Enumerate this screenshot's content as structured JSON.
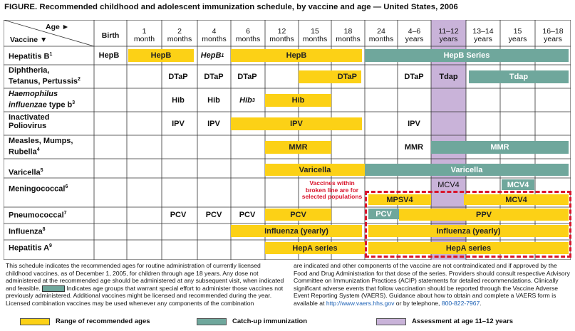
{
  "title": "FIGURE. Recommended childhood and adolescent immunization schedule, by vaccine and age — United States, 2006",
  "header": {
    "vaccine_label": "Vaccine ▼",
    "age_label": "Age ►",
    "ages": [
      {
        "line1": "Birth",
        "line2": ""
      },
      {
        "line1": "1",
        "line2": "month"
      },
      {
        "line1": "2",
        "line2": "months"
      },
      {
        "line1": "4",
        "line2": "months"
      },
      {
        "line1": "6",
        "line2": "months"
      },
      {
        "line1": "12",
        "line2": "months"
      },
      {
        "line1": "15",
        "line2": "months"
      },
      {
        "line1": "18",
        "line2": "months"
      },
      {
        "line1": "24",
        "line2": "months"
      },
      {
        "line1": "4–6",
        "line2": "years"
      },
      {
        "line1": "11–12",
        "line2": "years"
      },
      {
        "line1": "13–14",
        "line2": "years"
      },
      {
        "line1": "15",
        "line2": "years"
      },
      {
        "line1": "16–18",
        "line2": "years"
      }
    ]
  },
  "vaccines": [
    {
      "name": "Hepatitis B",
      "sup": "1",
      "name2": ""
    },
    {
      "name": "Diphtheria,",
      "sup": "",
      "name2": "Tetanus, Pertussis",
      "sup2": "2"
    },
    {
      "name": "Haemophilus",
      "sup": "",
      "name2": "influenzae type b",
      "sup2": "3"
    },
    {
      "name": "Inactivated",
      "sup": "",
      "name2": "Poliovirus",
      "sup2": ""
    },
    {
      "name": "Measles, Mumps,",
      "sup": "",
      "name2": "Rubella",
      "sup2": "4"
    },
    {
      "name": "Varicella",
      "sup": "5",
      "name2": ""
    },
    {
      "name": "Meningococcal",
      "sup": "6",
      "name2": ""
    },
    {
      "name": "Pneumococcal",
      "sup": "7",
      "name2": ""
    },
    {
      "name": "Influenza",
      "sup": "8",
      "name2": ""
    },
    {
      "name": "Hepatitis A",
      "sup": "9",
      "name2": ""
    }
  ],
  "doses": {
    "hepb_birth": "HepB",
    "hepb_1m": "HepB",
    "hepb_4m": "HepB",
    "hepb_4m_sup": "1",
    "hepb_main": "HepB",
    "hepb_series": "HepB Series",
    "dtap_2m": "DTaP",
    "dtap_4m": "DTaP",
    "dtap_6m": "DTaP",
    "dtap_15m": "DTaP",
    "dtap_4y": "DTaP",
    "tdap_11": "Tdap",
    "tdap_catchup": "Tdap",
    "hib_2m": "Hib",
    "hib_4m": "Hib",
    "hib_6m": "Hib",
    "hib_6m_sup": "3",
    "hib_12m": "Hib",
    "ipv_2m": "IPV",
    "ipv_4m": "IPV",
    "ipv_main": "IPV",
    "ipv_4y": "IPV",
    "mmr_12m": "MMR",
    "mmr_4y": "MMR",
    "mmr_catchup": "MMR",
    "var_main": "Varicella",
    "var_catchup": "Varicella",
    "mcv4_11": "MCV4",
    "mcv4_15": "MCV4",
    "mpsv4": "MPSV4",
    "mcv4_hr": "MCV4",
    "pcv_2m": "PCV",
    "pcv_4m": "PCV",
    "pcv_6m": "PCV",
    "pcv_12m": "PCV",
    "pcv_catchup": "PCV",
    "ppv": "PPV",
    "flu_main": "Influenza (yearly)",
    "flu_hr": "Influenza (yearly)",
    "hepa_main": "HepA series",
    "hepa_hr": "HepA series"
  },
  "broken_line_note": {
    "l1": "Vaccines within",
    "l2": "broken line are for",
    "l3": "selected populations"
  },
  "footnote_left": "This schedule indicates the recommended ages for routine administration of currently licensed childhood vaccines, as of December 1, 2005, for children through age 18 years. Any dose not administered at the recommended age should be administered at any subsequent visit, when indicated and feasible.",
  "footnote_left_2": "Indicates age groups that warrant special effort to administer those vaccines not previously administered. Additional vaccines might be licensed and recommended during the year. Licensed combination vaccines may be used whenever any components of the combination",
  "footnote_right_1": "are indicated and other components of the vaccine are not contraindicated and if approved by the Food and Drug Administration for that dose of the series. Providers should consult respective Advisory Committee on Immunization Practices (ACIP) statements for detailed recommendations. Clinically significant adverse events that follow vaccination should be reported through the Vaccine Adverse Event Reporting System (VAERS). Guidance about how to obtain and complete a VAERS form is available at",
  "vaers_url": "http://www.vaers.hhs.gov",
  "footnote_right_2": "or by telephone,",
  "vaers_phone": "800-822-7967",
  "legend": {
    "recommended": "Range of recommended ages",
    "catchup": "Catch-up immunization",
    "assessment": "Assessment at age 11–12 years"
  },
  "colors": {
    "recommended": "#fcd116",
    "catchup": "#6fa79c",
    "assessment": "#c9b3d9",
    "border": "#d9142b"
  }
}
